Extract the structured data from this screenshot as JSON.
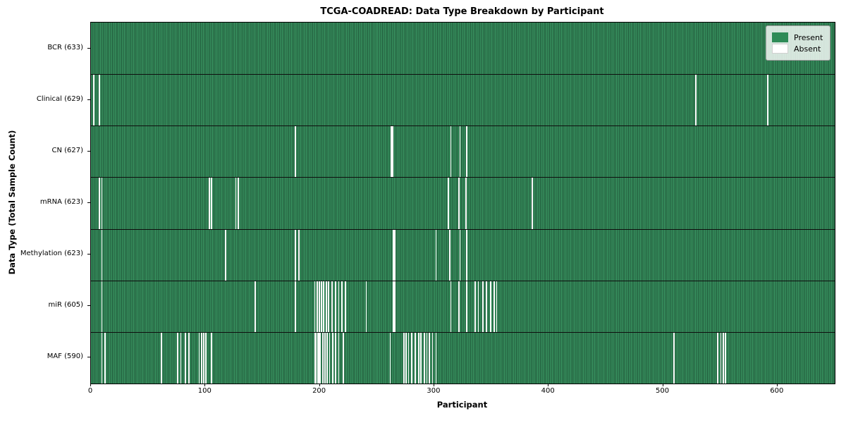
{
  "chart_data": {
    "type": "heatmap",
    "title": "TCGA-COADREAD: Data Type Breakdown by Participant",
    "xlabel": "Participant",
    "ylabel": "Data Type (Total Sample Count)",
    "x_ticks": [
      0,
      100,
      200,
      300,
      400,
      500,
      600
    ],
    "x_range": [
      0,
      650
    ],
    "n_participants": 633,
    "grid": false,
    "colors": {
      "present": "#2e8b57",
      "present_stripe_light": "#37905e",
      "present_stripe_dark": "#20593a",
      "absent": "#ffffff",
      "row_separator": "#0e0e0e"
    },
    "legend": {
      "position": "top-right",
      "items": [
        {
          "label": "Present",
          "color": "#2e8b57"
        },
        {
          "label": "Absent",
          "color": "#ffffff"
        }
      ]
    },
    "rows": [
      {
        "label": "BCR (633)",
        "data_type": "BCR",
        "present_count": 633,
        "absent_participants": []
      },
      {
        "label": "Clinical (629)",
        "data_type": "Clinical",
        "present_count": 629,
        "absent_participants": [
          2,
          7,
          528,
          591
        ]
      },
      {
        "label": "CN (627)",
        "data_type": "CN",
        "present_count": 627,
        "absent_participants": [
          178,
          262,
          263,
          314,
          322,
          328
        ]
      },
      {
        "label": "mRNA (623)",
        "data_type": "mRNA",
        "present_count": 623,
        "absent_participants": [
          7,
          9,
          103,
          105,
          126,
          128,
          312,
          321,
          327,
          385
        ]
      },
      {
        "label": "Methylation (623)",
        "data_type": "Methylation",
        "present_count": 623,
        "absent_participants": [
          9,
          117,
          178,
          181,
          264,
          265,
          301,
          313,
          322,
          328
        ]
      },
      {
        "label": "miR (605)",
        "data_type": "miR",
        "present_count": 605,
        "absent_participants": [
          9,
          143,
          178,
          195,
          197,
          199,
          201,
          203,
          205,
          207,
          210,
          213,
          216,
          219,
          222,
          240,
          264,
          265,
          314,
          321,
          328,
          335,
          338,
          342,
          345,
          349,
          352,
          354
        ]
      },
      {
        "label": "MAF (590)",
        "data_type": "MAF",
        "present_count": 590,
        "absent_participants": [
          9,
          12,
          61,
          75,
          78,
          82,
          85,
          94,
          96,
          98,
          100,
          105,
          195,
          196,
          198,
          199,
          200,
          202,
          204,
          206,
          208,
          211,
          213,
          216,
          220,
          261,
          273,
          275,
          277,
          280,
          283,
          286,
          288,
          291,
          293,
          295,
          298,
          301,
          509,
          547,
          550,
          552,
          554
        ]
      }
    ]
  }
}
